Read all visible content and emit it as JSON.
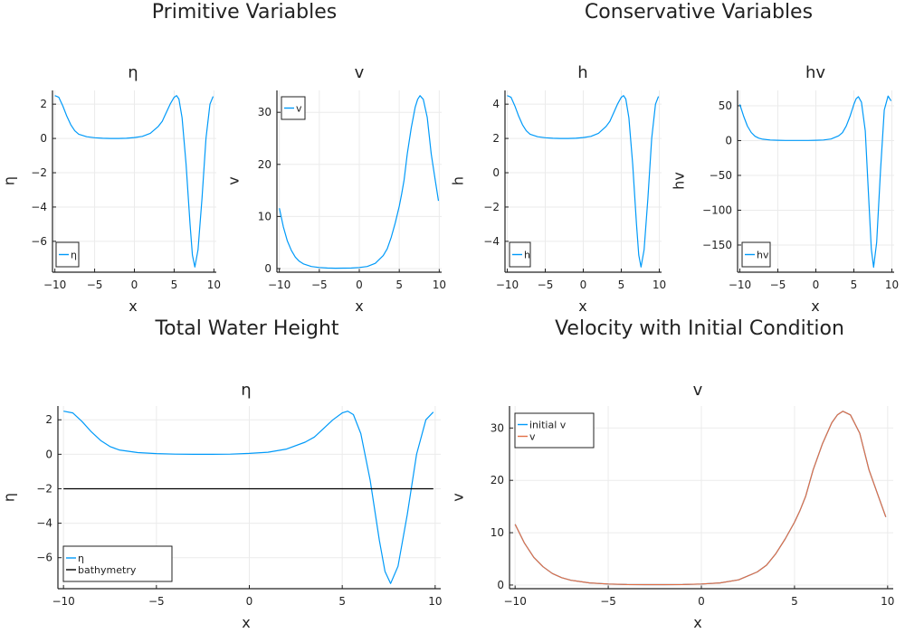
{
  "group_titles": {
    "left": "Primitive Variables",
    "right": "Conservative Variables",
    "bottom_left": "Total Water Height",
    "bottom_right": "Velocity with Initial Condition"
  },
  "colors": {
    "series1": "#009af9",
    "series2": "#e26f46",
    "bathymetry": "#000000",
    "grid": "#ebebeb",
    "axis": "#222222"
  },
  "chart_data": [
    {
      "type": "line",
      "title": "η",
      "xlabel": "x",
      "ylabel": "η",
      "xlim": [
        -10.3,
        10.3
      ],
      "ylim": [
        -7.8,
        2.8
      ],
      "grid": true,
      "legend": "bottom-left",
      "xticks": [
        -10,
        -5,
        0,
        5,
        10
      ],
      "yticks": [
        2,
        0,
        -2,
        -4,
        -6
      ],
      "x": [
        -10,
        -9.5,
        -9,
        -8.5,
        -8,
        -7.5,
        -7,
        -6,
        -5,
        -4,
        -3,
        -2,
        -1,
        0,
        1,
        2,
        3,
        3.5,
        4,
        4.5,
        5,
        5.3,
        5.6,
        6,
        6.5,
        7,
        7.3,
        7.6,
        8,
        8.5,
        9,
        9.5,
        9.9
      ],
      "series": [
        {
          "name": "η",
          "color": "#009af9",
          "values": [
            2.5,
            2.4,
            1.9,
            1.3,
            0.8,
            0.45,
            0.25,
            0.1,
            0.04,
            0.01,
            0,
            0,
            0.01,
            0.05,
            0.12,
            0.3,
            0.7,
            1.0,
            1.5,
            2.0,
            2.4,
            2.5,
            2.3,
            1.2,
            -1.5,
            -5,
            -6.8,
            -7.5,
            -6.5,
            -3.5,
            0,
            2.0,
            2.45
          ]
        }
      ]
    },
    {
      "type": "line",
      "title": "v",
      "xlabel": "x",
      "ylabel": "v",
      "xlim": [
        -10.3,
        10.3
      ],
      "ylim": [
        -0.7,
        34.2
      ],
      "grid": true,
      "legend": "top-left",
      "xticks": [
        -10,
        -5,
        0,
        5,
        10
      ],
      "yticks": [
        0,
        10,
        20,
        30
      ],
      "x": [
        -10,
        -9.5,
        -9,
        -8.5,
        -8,
        -7.5,
        -7,
        -6,
        -5,
        -4,
        -3,
        -2,
        -1,
        0,
        1,
        2,
        3,
        3.5,
        4,
        4.5,
        5,
        5.3,
        5.6,
        6,
        6.5,
        7,
        7.3,
        7.6,
        8,
        8.5,
        9,
        9.5,
        9.9
      ],
      "series": [
        {
          "name": "v",
          "color": "#009af9",
          "values": [
            11.6,
            8,
            5.3,
            3.5,
            2.2,
            1.4,
            0.9,
            0.4,
            0.2,
            0.1,
            0.07,
            0.08,
            0.1,
            0.2,
            0.4,
            1,
            2.5,
            3.8,
            6,
            8.8,
            12,
            14.3,
            17,
            22,
            27,
            31,
            32.5,
            33.2,
            32.5,
            29,
            22,
            17,
            13
          ]
        }
      ]
    },
    {
      "type": "line",
      "title": "h",
      "xlabel": "x",
      "ylabel": "h",
      "xlim": [
        -10.3,
        10.3
      ],
      "ylim": [
        -5.8,
        4.8
      ],
      "grid": true,
      "legend": "bottom-left",
      "xticks": [
        -10,
        -5,
        0,
        5,
        10
      ],
      "yticks": [
        4,
        2,
        0,
        -2,
        -4
      ],
      "x": [
        -10,
        -9.5,
        -9,
        -8.5,
        -8,
        -7.5,
        -7,
        -6,
        -5,
        -4,
        -3,
        -2,
        -1,
        0,
        1,
        2,
        3,
        3.5,
        4,
        4.5,
        5,
        5.3,
        5.6,
        6,
        6.5,
        7,
        7.3,
        7.6,
        8,
        8.5,
        9,
        9.5,
        9.9
      ],
      "series": [
        {
          "name": "h",
          "color": "#009af9",
          "values": [
            4.5,
            4.4,
            3.9,
            3.3,
            2.8,
            2.45,
            2.25,
            2.1,
            2.04,
            2.01,
            2,
            2,
            2.01,
            2.05,
            2.12,
            2.3,
            2.7,
            3.0,
            3.5,
            4.0,
            4.4,
            4.5,
            4.3,
            3.2,
            0.5,
            -3,
            -4.8,
            -5.5,
            -4.5,
            -1.5,
            2,
            4.0,
            4.45
          ]
        }
      ]
    },
    {
      "type": "line",
      "title": "hv",
      "xlabel": "x",
      "ylabel": "hv",
      "xlim": [
        -10.3,
        10.3
      ],
      "ylim": [
        -189,
        72
      ],
      "grid": true,
      "legend": "bottom-left",
      "xticks": [
        -10,
        -5,
        0,
        5,
        10
      ],
      "yticks": [
        50,
        0,
        -50,
        -100,
        -150
      ],
      "x": [
        -10,
        -9.5,
        -9,
        -8.5,
        -8,
        -7.5,
        -7,
        -6,
        -5,
        -4,
        -3,
        -2,
        -1,
        0,
        1,
        2,
        3,
        3.5,
        4,
        4.5,
        5,
        5.3,
        5.6,
        6,
        6.5,
        7,
        7.3,
        7.6,
        8,
        8.5,
        9,
        9.5,
        9.9
      ],
      "series": [
        {
          "name": "hv",
          "color": "#009af9",
          "values": [
            52,
            35,
            20.7,
            11.6,
            6.2,
            3.4,
            2.0,
            0.8,
            0.4,
            0.2,
            0.14,
            0.16,
            0.2,
            0.4,
            0.8,
            2.3,
            6.8,
            11.4,
            21,
            35,
            52,
            60,
            63,
            55,
            14,
            -93,
            -156,
            -182,
            -146,
            -44,
            44,
            64,
            57
          ]
        }
      ]
    },
    {
      "type": "line",
      "title": "η",
      "xlabel": "x",
      "ylabel": "η",
      "xlim": [
        -10.3,
        10.3
      ],
      "ylim": [
        -7.8,
        2.8
      ],
      "grid": true,
      "legend": "bottom-left",
      "xticks": [
        -10,
        -5,
        0,
        5,
        10
      ],
      "yticks": [
        2,
        0,
        -2,
        -4,
        -6
      ],
      "x": [
        -10,
        -9.5,
        -9,
        -8.5,
        -8,
        -7.5,
        -7,
        -6,
        -5,
        -4,
        -3,
        -2,
        -1,
        0,
        1,
        2,
        3,
        3.5,
        4,
        4.5,
        5,
        5.3,
        5.6,
        6,
        6.5,
        7,
        7.3,
        7.6,
        8,
        8.5,
        9,
        9.5,
        9.9
      ],
      "series": [
        {
          "name": "η",
          "color": "#009af9",
          "values": [
            2.5,
            2.4,
            1.9,
            1.3,
            0.8,
            0.45,
            0.25,
            0.1,
            0.04,
            0.01,
            0,
            0,
            0.01,
            0.05,
            0.12,
            0.3,
            0.7,
            1.0,
            1.5,
            2.0,
            2.4,
            2.5,
            2.3,
            1.2,
            -1.5,
            -5,
            -6.8,
            -7.5,
            -6.5,
            -3.5,
            0,
            2.0,
            2.45
          ]
        },
        {
          "name": "bathymetry",
          "color": "#000000",
          "values": [
            -2,
            -2,
            -2,
            -2,
            -2,
            -2,
            -2,
            -2,
            -2,
            -2,
            -2,
            -2,
            -2,
            -2,
            -2,
            -2,
            -2,
            -2,
            -2,
            -2,
            -2,
            -2,
            -2,
            -2,
            -2,
            -2,
            -2,
            -2,
            -2,
            -2,
            -2,
            -2,
            -2
          ]
        }
      ]
    },
    {
      "type": "line",
      "title": "v",
      "xlabel": "x",
      "ylabel": "v",
      "xlim": [
        -10.3,
        10.3
      ],
      "ylim": [
        -0.7,
        34.2
      ],
      "grid": true,
      "legend": "top-left",
      "xticks": [
        -10,
        -5,
        0,
        5,
        10
      ],
      "yticks": [
        0,
        10,
        20,
        30
      ],
      "x": [
        -10,
        -9.5,
        -9,
        -8.5,
        -8,
        -7.5,
        -7,
        -6,
        -5,
        -4,
        -3,
        -2,
        -1,
        0,
        1,
        2,
        3,
        3.5,
        4,
        4.5,
        5,
        5.3,
        5.6,
        6,
        6.5,
        7,
        7.3,
        7.6,
        8,
        8.5,
        9,
        9.5,
        9.9
      ],
      "series": [
        {
          "name": "initial v",
          "color": "#009af9",
          "values": [
            11.6,
            8,
            5.3,
            3.5,
            2.2,
            1.4,
            0.9,
            0.4,
            0.2,
            0.1,
            0.07,
            0.08,
            0.1,
            0.2,
            0.4,
            1,
            2.5,
            3.8,
            6,
            8.8,
            12,
            14.3,
            17,
            22,
            27,
            31,
            32.5,
            33.2,
            32.5,
            29,
            22,
            17,
            13
          ]
        },
        {
          "name": "v",
          "color": "#e26f46",
          "values": [
            11.6,
            8,
            5.3,
            3.5,
            2.2,
            1.4,
            0.9,
            0.4,
            0.2,
            0.1,
            0.07,
            0.08,
            0.1,
            0.2,
            0.4,
            1,
            2.5,
            3.8,
            6,
            8.8,
            12,
            14.3,
            17,
            22,
            27,
            31,
            32.5,
            33.2,
            32.5,
            29,
            22,
            17,
            13
          ]
        }
      ]
    }
  ]
}
